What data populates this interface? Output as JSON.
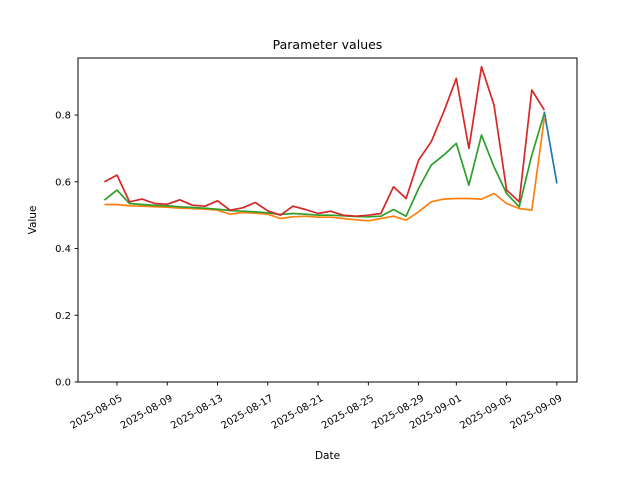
{
  "chart_data": {
    "type": "line",
    "title": "Parameter values",
    "xlabel": "Date",
    "ylabel": "Value",
    "grid": false,
    "legend": "none",
    "background": "#ffffff",
    "text_color": "#000000",
    "x_dates": [
      "2025-08-04",
      "2025-08-05",
      "2025-08-06",
      "2025-08-07",
      "2025-08-08",
      "2025-08-09",
      "2025-08-10",
      "2025-08-11",
      "2025-08-12",
      "2025-08-13",
      "2025-08-14",
      "2025-08-15",
      "2025-08-16",
      "2025-08-17",
      "2025-08-18",
      "2025-08-19",
      "2025-08-20",
      "2025-08-21",
      "2025-08-22",
      "2025-08-23",
      "2025-08-24",
      "2025-08-25",
      "2025-08-26",
      "2025-08-27",
      "2025-08-28",
      "2025-08-29",
      "2025-08-30",
      "2025-08-31",
      "2025-09-01",
      "2025-09-02",
      "2025-09-03",
      "2025-09-04",
      "2025-09-05",
      "2025-09-06",
      "2025-09-07",
      "2025-09-08",
      "2025-09-09"
    ],
    "xlim_index": [
      -2.1,
      37.6
    ],
    "ylim": [
      0,
      0.971
    ],
    "x_ticks": [
      {
        "index": 1,
        "label": "2025-08-05"
      },
      {
        "index": 5,
        "label": "2025-08-09"
      },
      {
        "index": 9,
        "label": "2025-08-13"
      },
      {
        "index": 13,
        "label": "2025-08-17"
      },
      {
        "index": 17,
        "label": "2025-08-21"
      },
      {
        "index": 21,
        "label": "2025-08-25"
      },
      {
        "index": 25,
        "label": "2025-08-29"
      },
      {
        "index": 28,
        "label": "2025-09-01"
      },
      {
        "index": 32,
        "label": "2025-09-05"
      },
      {
        "index": 36,
        "label": "2025-09-09"
      }
    ],
    "y_ticks": [
      {
        "value": 0.0,
        "label": "0.0"
      },
      {
        "value": 0.2,
        "label": "0.2"
      },
      {
        "value": 0.4,
        "label": "0.4"
      },
      {
        "value": 0.6,
        "label": "0.6"
      },
      {
        "value": 0.8,
        "label": "0.8"
      }
    ],
    "series": [
      {
        "name": "series-blue",
        "color": "#1f77b4",
        "values": [
          null,
          null,
          null,
          null,
          null,
          null,
          null,
          null,
          null,
          null,
          null,
          null,
          null,
          null,
          null,
          null,
          null,
          null,
          null,
          null,
          null,
          null,
          null,
          null,
          null,
          null,
          null,
          null,
          null,
          null,
          null,
          null,
          null,
          null,
          null,
          0.81,
          0.595
        ]
      },
      {
        "name": "series-orange",
        "color": "#ff7f0e",
        "values": [
          0.532,
          0.532,
          0.528,
          0.527,
          0.525,
          0.524,
          0.521,
          0.52,
          0.518,
          0.515,
          0.503,
          0.508,
          0.506,
          0.503,
          0.49,
          0.495,
          0.497,
          0.494,
          0.494,
          0.49,
          0.486,
          0.483,
          0.49,
          0.497,
          0.485,
          0.51,
          0.54,
          0.548,
          0.55,
          0.55,
          0.548,
          0.565,
          0.535,
          0.52,
          0.515,
          0.79,
          null
        ]
      },
      {
        "name": "series-green",
        "color": "#2ca02c",
        "values": [
          0.545,
          0.575,
          0.535,
          0.532,
          0.529,
          0.528,
          0.525,
          0.523,
          0.521,
          0.518,
          0.514,
          0.512,
          0.51,
          0.507,
          0.502,
          0.505,
          0.503,
          0.5,
          0.5,
          0.498,
          0.496,
          0.495,
          0.497,
          0.517,
          0.497,
          0.58,
          0.65,
          0.68,
          0.715,
          0.59,
          0.74,
          0.645,
          0.565,
          0.525,
          0.68,
          0.805,
          null
        ]
      },
      {
        "name": "series-red",
        "color": "#d62728",
        "values": [
          0.6,
          0.62,
          0.54,
          0.548,
          0.535,
          0.533,
          0.546,
          0.53,
          0.527,
          0.543,
          0.515,
          0.522,
          0.538,
          0.513,
          0.5,
          0.527,
          0.517,
          0.505,
          0.512,
          0.5,
          0.497,
          0.5,
          0.505,
          0.585,
          0.55,
          0.665,
          0.72,
          0.81,
          0.91,
          0.7,
          0.945,
          0.83,
          0.575,
          0.54,
          0.875,
          0.815,
          null
        ]
      }
    ]
  }
}
